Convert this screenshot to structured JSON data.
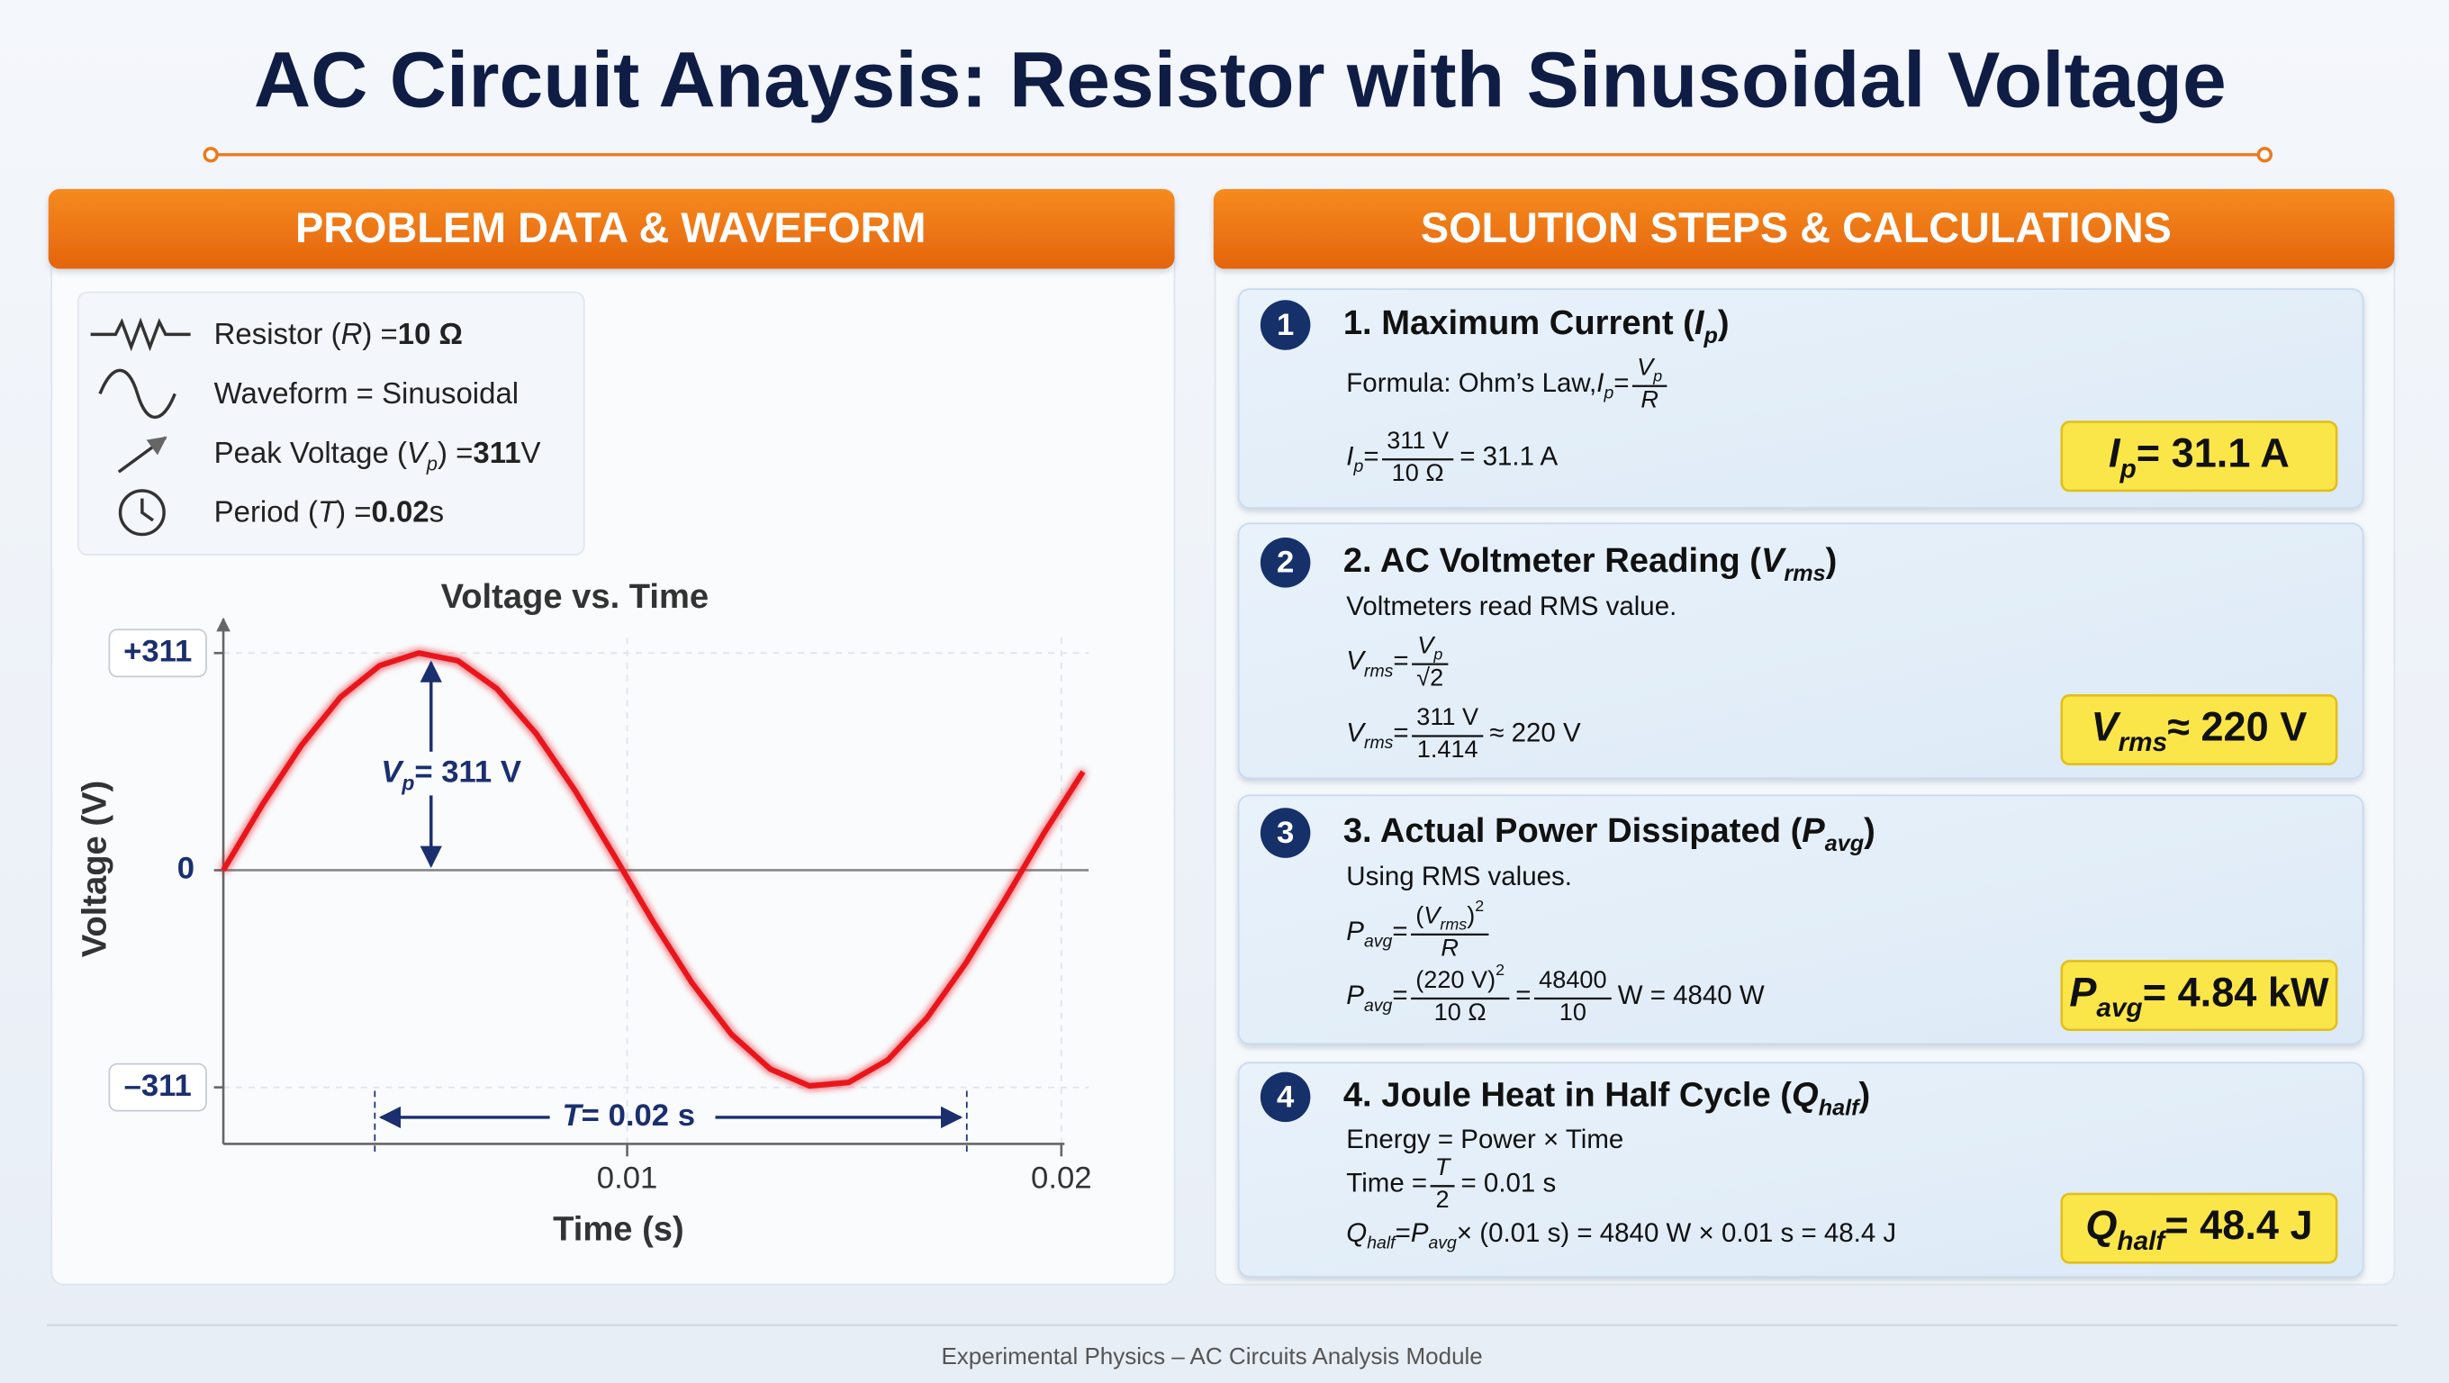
{
  "title": "AC Circuit Anaysis: Resistor with Sinusoidal Voltage",
  "panels": [
    "PROBLEM DATA & WAVEFORM",
    "SOLUTION STEPS & CALCULATIONS"
  ],
  "given": [
    [
      "Resistor (",
      {
        "i": "R"
      },
      ") = ",
      {
        "b": "10 Ω"
      }
    ],
    [
      "Waveform = Sinusoidal"
    ],
    [
      "Peak Voltage (",
      {
        "i": "V",
        "sub": "p"
      },
      ") = ",
      {
        "b": "311"
      },
      " V"
    ],
    [
      "Period (",
      {
        "i": "T"
      },
      ") = ",
      {
        "b": "0.02"
      },
      " s"
    ]
  ],
  "chart_data": {
    "type": "line",
    "title": "Voltage vs. Time",
    "x_label": "Time (s)",
    "y_label": "Voltage (V)",
    "x": [
      0.0007,
      0.0016,
      0.0025,
      0.0034,
      0.0043,
      0.0052,
      0.0061,
      0.007,
      0.0079,
      0.0088,
      0.0097,
      0.0106,
      0.0115,
      0.0124,
      0.0133,
      0.0142,
      0.0151,
      0.016,
      0.0169,
      0.0178,
      0.0187,
      0.0196,
      0.0205
    ],
    "values": [
      0,
      94,
      179,
      248,
      293,
      311,
      300,
      260,
      196,
      114,
      21,
      -74,
      -162,
      -235,
      -285,
      -309,
      -304,
      -272,
      -212,
      -133,
      -42,
      53,
      141
    ],
    "color": "#e8141b",
    "xlim": [
      0.0007,
      0.0207
    ],
    "ylim": [
      -392,
      360
    ],
    "xticks": [
      0.01,
      0.02
    ],
    "yticks": [
      {
        "value": 311,
        "label": "+311"
      },
      0,
      {
        "value": -311,
        "label": "–311"
      }
    ],
    "grid": true,
    "annotations": [
      [
        {
          "i": "V",
          "sub": "p"
        },
        " = 311 V"
      ],
      [
        {
          "i": "T"
        },
        " = 0.02 s"
      ]
    ]
  },
  "steps": [
    {
      "number": "1",
      "title": [
        "1. Maximum Current (",
        {
          "i": "I",
          "sub": "p"
        },
        ")"
      ],
      "lines": [
        [
          "Formula:  Ohm’s Law,  ",
          {
            "i": "I",
            "sub": "p"
          },
          " = ",
          {
            "num": [
              {
                "i": "V",
                "sub": "p"
              }
            ],
            "den": [
              {
                "i": "R"
              }
            ]
          }
        ],
        [
          {
            "i": "I",
            "sub": "p"
          },
          " = ",
          {
            "num": [
              "311 V"
            ],
            "den": [
              "10 Ω"
            ]
          },
          " = 31.1 A"
        ]
      ],
      "result": [
        {
          "i": "I",
          "sub": "p"
        },
        " = 31.1 A"
      ]
    },
    {
      "number": "2",
      "title": [
        "2. AC Voltmeter Reading (",
        {
          "i": "V",
          "sub": "rms"
        },
        ")"
      ],
      "lines": [
        [
          "Voltmeters read RMS value."
        ],
        [
          {
            "i": "V",
            "sub": "rms"
          },
          " = ",
          {
            "num": [
              {
                "i": "V",
                "sub": "p"
              }
            ],
            "den": [
              "√2"
            ]
          }
        ],
        [
          {
            "i": "V",
            "sub": "rms"
          },
          " = ",
          {
            "num": [
              "311 V"
            ],
            "den": [
              "1.414"
            ]
          },
          " ≈ 220 V"
        ]
      ],
      "result": [
        {
          "i": "V",
          "sub": "rms"
        },
        " ≈ 220 V"
      ]
    },
    {
      "number": "3",
      "title": [
        "3. Actual Power Dissipated (",
        {
          "i": "P",
          "sub": "avg"
        },
        ")"
      ],
      "lines": [
        [
          "Using RMS values."
        ],
        [
          {
            "i": "P",
            "sub": "avg"
          },
          " = ",
          {
            "num": [
              "(",
              {
                "i": "V",
                "sub": "rms"
              },
              ")",
              {
                "sup": "2"
              }
            ],
            "den": [
              {
                "i": "R"
              }
            ]
          }
        ],
        [
          {
            "i": "P",
            "sub": "avg"
          },
          " = ",
          {
            "num": [
              "(220 V)",
              {
                "sup": "2"
              }
            ],
            "den": [
              "10 Ω"
            ]
          },
          " = ",
          {
            "num": [
              "48400"
            ],
            "den": [
              "10"
            ]
          },
          " W = 4840 W"
        ]
      ],
      "result": [
        {
          "i": "P",
          "sub": "avg"
        },
        " = 4.84 kW"
      ]
    },
    {
      "number": "4",
      "title": [
        "4. Joule Heat in Half Cycle (",
        {
          "i": "Q",
          "sub": "half"
        },
        ")"
      ],
      "lines": [
        [
          "Energy = Power × Time"
        ],
        [
          "Time = ",
          {
            "num": [
              {
                "i": "T"
              }
            ],
            "den": [
              "2"
            ]
          },
          " = 0.01 s"
        ],
        [
          {
            "i": "Q",
            "sub": "half"
          },
          " = ",
          {
            "i": "P",
            "sub": "avg"
          },
          " × (0.01 s) = 4840 W × 0.01 s = 48.4 J"
        ]
      ],
      "result": [
        {
          "i": "Q",
          "sub": "half"
        },
        " = 48.4 J"
      ]
    }
  ],
  "footer": "Experimental Physics – AC Circuits Analysis Module"
}
